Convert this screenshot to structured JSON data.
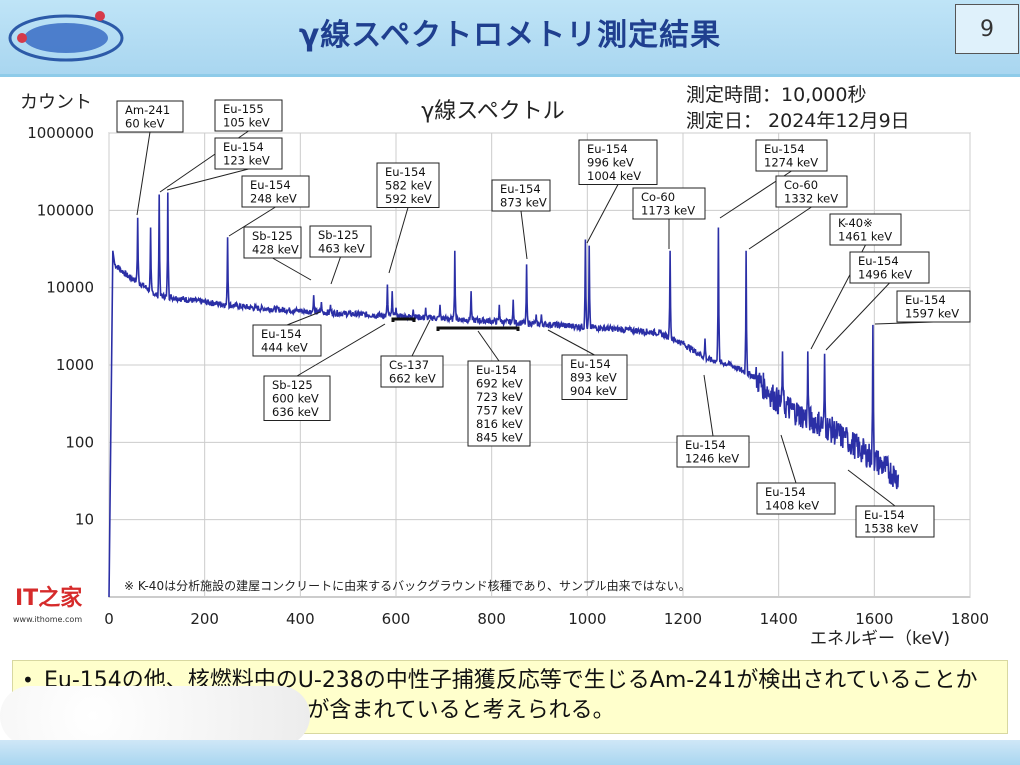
{
  "slide": {
    "title": "γ線スペクトロメトリ測定結果",
    "page_number": "9",
    "note_bullet": "•",
    "note_text": "Eu-154の他、核燃料中のU-238の中性子捕獲反応等で生じるAm-241が検出されていることから、このサンプルには燃料が含まれていると考えられる。"
  },
  "watermark": {
    "logo_text": "IT之家",
    "url": "www.ithome.com"
  },
  "chart_data": {
    "type": "line",
    "title": "γ線スペクトル",
    "info_lines": [
      "測定時間：10,000秒",
      "測定日： 2024年12月9日"
    ],
    "xlabel": "エネルギー（keV)",
    "ylabel": "カウント",
    "xlim": [
      0,
      1800
    ],
    "ylim": [
      1,
      1000000
    ],
    "yscale": "log",
    "x_ticks": [
      "0",
      "200",
      "400",
      "600",
      "800",
      "1000",
      "1200",
      "1400",
      "1600",
      "1800"
    ],
    "y_ticks": [
      "1000000",
      "100000",
      "10000",
      "1000",
      "100",
      "10"
    ],
    "y_tick_values": [
      1000000,
      100000,
      10000,
      1000,
      100,
      10
    ],
    "grid": true,
    "line_color": "#2b2fa6",
    "footnote": "※ K-40は分析施設の建屋コンクリートに由来するバックグラウンド核種であり、サンプル由来ではない。",
    "baseline": [
      [
        12,
        20000
      ],
      [
        20,
        18000
      ],
      [
        40,
        14000
      ],
      [
        60,
        12000
      ],
      [
        100,
        8000
      ],
      [
        200,
        6500
      ],
      [
        300,
        5500
      ],
      [
        400,
        5000
      ],
      [
        500,
        4600
      ],
      [
        600,
        4300
      ],
      [
        700,
        4000
      ],
      [
        800,
        3700
      ],
      [
        900,
        3400
      ],
      [
        1000,
        3100
      ],
      [
        1100,
        2800
      ],
      [
        1150,
        2600
      ],
      [
        1200,
        1900
      ],
      [
        1250,
        1200
      ],
      [
        1300,
        1000
      ],
      [
        1350,
        700
      ],
      [
        1400,
        330
      ],
      [
        1450,
        220
      ],
      [
        1500,
        160
      ],
      [
        1550,
        100
      ],
      [
        1600,
        60
      ],
      [
        1650,
        35
      ]
    ],
    "peaks": [
      {
        "x": 60,
        "y": 80000
      },
      {
        "x": 87,
        "y": 60000
      },
      {
        "x": 105,
        "y": 160000
      },
      {
        "x": 123,
        "y": 170000
      },
      {
        "x": 248,
        "y": 45000
      },
      {
        "x": 428,
        "y": 8000
      },
      {
        "x": 444,
        "y": 6500
      },
      {
        "x": 463,
        "y": 6000
      },
      {
        "x": 582,
        "y": 11000
      },
      {
        "x": 592,
        "y": 9000
      },
      {
        "x": 600,
        "y": 5500
      },
      {
        "x": 636,
        "y": 5200
      },
      {
        "x": 662,
        "y": 5500
      },
      {
        "x": 692,
        "y": 6000
      },
      {
        "x": 723,
        "y": 30000
      },
      {
        "x": 757,
        "y": 9000
      },
      {
        "x": 816,
        "y": 6000
      },
      {
        "x": 845,
        "y": 7000
      },
      {
        "x": 873,
        "y": 20000
      },
      {
        "x": 893,
        "y": 4500
      },
      {
        "x": 904,
        "y": 4500
      },
      {
        "x": 996,
        "y": 42000
      },
      {
        "x": 1004,
        "y": 35000
      },
      {
        "x": 1173,
        "y": 30000
      },
      {
        "x": 1246,
        "y": 2200
      },
      {
        "x": 1274,
        "y": 60000
      },
      {
        "x": 1332,
        "y": 30000
      },
      {
        "x": 1408,
        "y": 1500
      },
      {
        "x": 1461,
        "y": 1500
      },
      {
        "x": 1496,
        "y": 1400
      },
      {
        "x": 1538,
        "y": 130
      },
      {
        "x": 1597,
        "y": 3300
      }
    ],
    "annotations": [
      {
        "text": [
          "Am-241",
          "60 keV"
        ]
      },
      {
        "text": [
          "Eu-155",
          "105 keV"
        ]
      },
      {
        "text": [
          "Eu-154",
          "123 keV"
        ]
      },
      {
        "text": [
          "Eu-154",
          "248 keV"
        ]
      },
      {
        "text": [
          "Sb-125",
          "428 keV"
        ]
      },
      {
        "text": [
          "Sb-125",
          "463 keV"
        ]
      },
      {
        "text": [
          "Eu-154",
          "582 keV",
          "592 keV"
        ]
      },
      {
        "text": [
          "Eu-154",
          "873 keV"
        ]
      },
      {
        "text": [
          "Eu-154",
          "996 keV",
          "1004 keV"
        ]
      },
      {
        "text": [
          "Co-60",
          "1173 keV"
        ]
      },
      {
        "text": [
          "Eu-154",
          "1274 keV"
        ]
      },
      {
        "text": [
          "Co-60",
          "1332 keV"
        ]
      },
      {
        "text": [
          "K-40※",
          "1461 keV"
        ]
      },
      {
        "text": [
          "Eu-154",
          "1496 keV"
        ]
      },
      {
        "text": [
          "Eu-154",
          "1597 keV"
        ]
      },
      {
        "text": [
          "Eu-154",
          "444 keV"
        ]
      },
      {
        "text": [
          "Cs-137",
          "662 keV"
        ]
      },
      {
        "text": [
          "Eu-154",
          "692 keV",
          "723 keV",
          "757 keV",
          "816 keV",
          "845 keV"
        ]
      },
      {
        "text": [
          "Eu-154",
          "893 keV",
          "904 keV"
        ]
      },
      {
        "text": [
          "Sb-125",
          "600 keV",
          "636 keV"
        ]
      },
      {
        "text": [
          "Eu-154",
          "1246 keV"
        ]
      },
      {
        "text": [
          "Eu-154",
          "1408 keV"
        ]
      },
      {
        "text": [
          "Eu-154",
          "1538 keV"
        ]
      }
    ]
  }
}
